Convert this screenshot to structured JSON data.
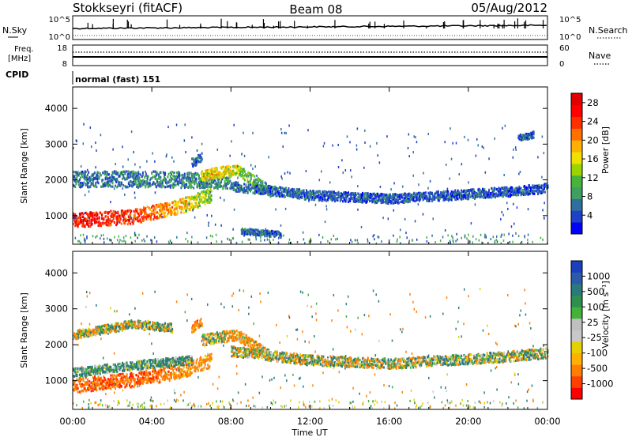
{
  "header": {
    "station": "Stokkseyri (fitACF)",
    "beam": "Beam 08",
    "date": "05/Aug/2012"
  },
  "noise_panel": {
    "left_label": "N.Sky",
    "right_label": "N.Search",
    "left_ticks": [
      "10^5",
      "10^0"
    ],
    "right_ticks": [
      "10^5",
      "10^0"
    ]
  },
  "freq_panel": {
    "label_line1": "Freq.",
    "label_line2": "[MHz]",
    "left_ticks": [
      "18",
      "8"
    ],
    "right_ticks": [
      "60",
      "0"
    ],
    "right_label": "Nave"
  },
  "cpid_panel": {
    "label": "CPID",
    "mode": "normal (fast) 151"
  },
  "power_panel": {
    "y_label": "Slant Range [km]",
    "y_ticks": [
      "1000",
      "2000",
      "3000",
      "4000"
    ],
    "colorbar_label": "Power [dB]",
    "colorbar_ticks": [
      "4",
      "8",
      "12",
      "16",
      "20",
      "24",
      "28"
    ],
    "colorbar_colors": [
      "#0000ff",
      "#1f40c8",
      "#2f6fa0",
      "#3f9f60",
      "#46b43c",
      "#9bd400",
      "#f0e000",
      "#ffb000",
      "#ff7000",
      "#ff3000",
      "#ff0000",
      "#e00000"
    ]
  },
  "velocity_panel": {
    "y_label": "Slant Range [km]",
    "y_ticks": [
      "1000",
      "2000",
      "3000",
      "4000"
    ],
    "colorbar_label": "Velocity [m s⁻¹]",
    "colorbar_ticks": [
      "1000",
      "500",
      "100",
      "25",
      "-25",
      "-100",
      "-500",
      "-1000"
    ],
    "colorbar_colors": [
      "#1a3fbf",
      "#2a5aa8",
      "#2a7a7a",
      "#2f8f4f",
      "#44b23a",
      "#bfbfbf",
      "#c8c8c8",
      "#e6d000",
      "#ffb000",
      "#ff8000",
      "#ff4000",
      "#ff0000"
    ]
  },
  "x_axis": {
    "label": "Time UT",
    "ticks": [
      "00:00",
      "04:00",
      "08:00",
      "12:00",
      "16:00",
      "20:00",
      "00:00"
    ]
  },
  "chart_data": [
    {
      "type": "heatmap",
      "title": "Power [dB]",
      "xlabel": "Time UT",
      "ylabel": "Slant Range [km]",
      "xlim": [
        0,
        24
      ],
      "ylim": [
        200,
        4600
      ],
      "clim": [
        0,
        30
      ],
      "bands": [
        {
          "t": [
            0.0,
            3.0,
            5.5,
            7.0
          ],
          "r": [
            900,
            1000,
            1300,
            1600
          ],
          "w": 200,
          "v": [
            26,
            24,
            18,
            12
          ]
        },
        {
          "t": [
            0.0,
            4.0,
            8.0
          ],
          "r": [
            2050,
            2050,
            2000
          ],
          "w": 220,
          "v": [
            6,
            7,
            8
          ]
        },
        {
          "t": [
            6.5,
            7.5,
            8.3,
            10.0
          ],
          "r": [
            2150,
            2250,
            2300,
            1700
          ],
          "w": 150,
          "v": [
            16,
            18,
            14,
            8
          ]
        },
        {
          "t": [
            8.0,
            12.0,
            16.0,
            19.0,
            22.0,
            24.0
          ],
          "r": [
            1850,
            1600,
            1500,
            1600,
            1700,
            1800
          ],
          "w": 130,
          "v": [
            6,
            5,
            5,
            5,
            5,
            4
          ]
        },
        {
          "t": [
            8.5,
            10.5
          ],
          "r": [
            600,
            500
          ],
          "w": 80,
          "v": [
            6,
            5
          ]
        },
        {
          "t": [
            6.0,
            6.5
          ],
          "r": [
            2500,
            2650
          ],
          "w": 130,
          "v": [
            6,
            6
          ]
        },
        {
          "t": [
            22.5,
            23.3
          ],
          "r": [
            3200,
            3300
          ],
          "w": 90,
          "v": [
            4,
            4
          ]
        }
      ]
    },
    {
      "type": "heatmap",
      "title": "Velocity [m s⁻¹]",
      "xlabel": "Time UT",
      "ylabel": "Slant Range [km]",
      "xlim": [
        0,
        24
      ],
      "ylim": [
        200,
        4600
      ],
      "clim": [
        -1000,
        1000
      ],
      "bands": [
        {
          "t": [
            0.0,
            3.0,
            5.5,
            7.0
          ],
          "r": [
            900,
            1050,
            1300,
            1600
          ],
          "w": 200,
          "v": [
            -400,
            -450,
            -300,
            -200
          ]
        },
        {
          "t": [
            0.0,
            3.0,
            6.0
          ],
          "r": [
            1250,
            1450,
            1600
          ],
          "w": 120,
          "v": [
            200,
            150,
            120
          ]
        },
        {
          "t": [
            6.5,
            7.5,
            8.3,
            10.0
          ],
          "r": [
            2150,
            2250,
            2300,
            1700
          ],
          "w": 150,
          "v": [
            0,
            0,
            -200,
            0
          ]
        },
        {
          "t": [
            8.0,
            12.0,
            16.0,
            19.0,
            22.0,
            24.0
          ],
          "r": [
            1850,
            1600,
            1500,
            1600,
            1700,
            1800
          ],
          "w": 140,
          "v": [
            0,
            0,
            0,
            40,
            60,
            30
          ]
        },
        {
          "t": [
            0.0,
            3.0,
            5.0
          ],
          "r": [
            2300,
            2600,
            2500
          ],
          "w": 120,
          "v": [
            0,
            0,
            0
          ]
        },
        {
          "t": [
            6.0,
            6.5
          ],
          "r": [
            2500,
            2650
          ],
          "w": 130,
          "v": [
            -300,
            -300
          ]
        }
      ]
    }
  ]
}
